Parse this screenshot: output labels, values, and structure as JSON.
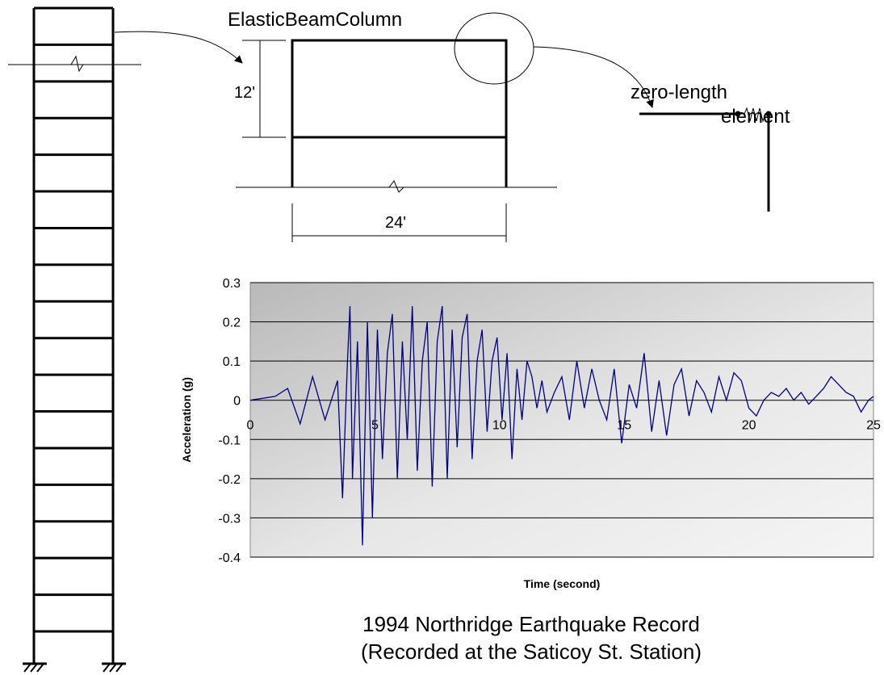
{
  "frame_labels": {
    "element_name": "ElasticBeamColumn",
    "story_height": "12'",
    "bay_width": "24'",
    "connection_label_line1": "zero-length",
    "connection_label_line2": "element"
  },
  "caption": {
    "line1": "1994 Northridge Earthquake Record",
    "line2": "(Recorded at the Saticoy St. Station)"
  },
  "building": {
    "floor_count": 17
  },
  "chart_data": {
    "type": "line",
    "title": "",
    "xlabel": "Time (second)",
    "ylabel": "Acceleration (g)",
    "xlim": [
      0,
      25
    ],
    "ylim": [
      -0.4,
      0.3
    ],
    "x_ticks": [
      "0",
      "5",
      "10",
      "15",
      "20",
      "25"
    ],
    "y_ticks": [
      "0.3",
      "0.2",
      "0.1",
      "0",
      "-0.1",
      "-0.2",
      "-0.3",
      "-0.4"
    ],
    "grid": true,
    "line_color": "#000080",
    "series": [
      {
        "x": [
          0,
          1.0,
          1.5,
          2.0,
          2.5,
          3.0,
          3.5,
          3.7,
          3.9,
          4.0,
          4.1,
          4.3,
          4.5,
          4.7,
          4.9,
          5.1,
          5.3,
          5.5,
          5.7,
          5.9,
          6.1,
          6.3,
          6.5,
          6.7,
          6.9,
          7.1,
          7.3,
          7.5,
          7.7,
          7.9,
          8.1,
          8.3,
          8.5,
          8.7,
          8.9,
          9.1,
          9.3,
          9.5,
          9.7,
          9.9,
          10.1,
          10.3,
          10.5,
          10.7,
          10.9,
          11.1,
          11.3,
          11.5,
          11.7,
          11.9,
          12.2,
          12.5,
          12.8,
          13.1,
          13.4,
          13.7,
          14.0,
          14.3,
          14.6,
          14.9,
          15.2,
          15.5,
          15.8,
          16.1,
          16.4,
          16.7,
          17.0,
          17.3,
          17.6,
          17.9,
          18.2,
          18.5,
          18.8,
          19.1,
          19.4,
          19.7,
          20.0,
          20.3,
          20.6,
          20.9,
          21.2,
          21.5,
          21.8,
          22.1,
          22.4,
          22.7,
          23.0,
          23.3,
          23.6,
          23.9,
          24.2,
          24.5,
          24.8,
          25.0
        ],
        "values": [
          0,
          0.01,
          0.03,
          -0.06,
          0.06,
          -0.05,
          0.05,
          -0.25,
          0.1,
          0.24,
          -0.2,
          0.15,
          -0.37,
          0.2,
          -0.3,
          0.18,
          -0.15,
          0.12,
          0.22,
          -0.2,
          0.15,
          -0.1,
          0.24,
          -0.18,
          0.1,
          0.2,
          -0.22,
          0.15,
          0.24,
          -0.2,
          0.18,
          -0.12,
          0.16,
          0.22,
          -0.15,
          0.1,
          0.18,
          -0.08,
          0.1,
          0.16,
          -0.05,
          0.12,
          -0.15,
          0.08,
          -0.05,
          0.1,
          0.06,
          -0.02,
          0.05,
          -0.03,
          0.02,
          0.06,
          -0.05,
          0.1,
          -0.02,
          0.08,
          0.0,
          -0.05,
          0.08,
          -0.11,
          0.04,
          -0.02,
          0.12,
          -0.08,
          0.05,
          -0.09,
          0.04,
          0.08,
          -0.04,
          0.05,
          0.02,
          -0.03,
          0.06,
          0.0,
          0.07,
          0.05,
          -0.02,
          -0.04,
          0.0,
          0.02,
          0.01,
          0.03,
          0.0,
          0.02,
          -0.01,
          0.01,
          0.03,
          0.06,
          0.04,
          0.02,
          0.01,
          -0.03,
          0.0,
          0.01
        ]
      }
    ]
  }
}
